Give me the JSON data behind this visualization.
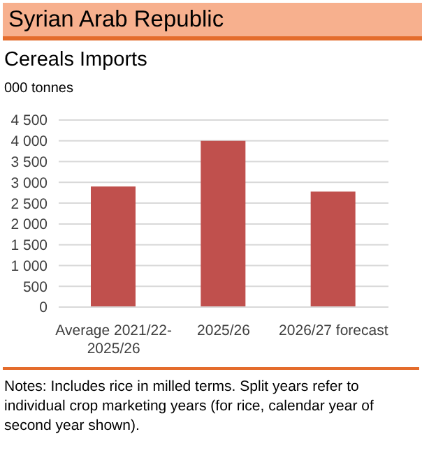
{
  "chart_data": {
    "type": "bar",
    "title": "Syrian Arab Republic",
    "subtitle": "Cereals Imports",
    "ylabel": "000 tonnes",
    "categories": [
      "Average 2021/22-2025/26",
      "2025/26",
      "2026/27 forecast"
    ],
    "values": [
      2900,
      4000,
      2780
    ],
    "color": "#c0504d",
    "ylim": [
      0,
      4500
    ],
    "yticks": [
      0,
      500,
      {
        "value": 1000,
        "label": "1 000"
      },
      {
        "value": 1500,
        "label": "1 500"
      },
      {
        "value": 2000,
        "label": "2 000"
      },
      {
        "value": 2500,
        "label": "2 500"
      },
      {
        "value": 3000,
        "label": "3 000"
      },
      {
        "value": 3500,
        "label": "3 500"
      },
      {
        "value": 4000,
        "label": "4 000"
      },
      {
        "value": 4500,
        "label": "4 500"
      }
    ],
    "grid": "y",
    "annotations": [
      "Notes: Includes rice in milled terms. Split years refer to individual crop marketing years (for rice, calendar year of second year shown)."
    ]
  }
}
